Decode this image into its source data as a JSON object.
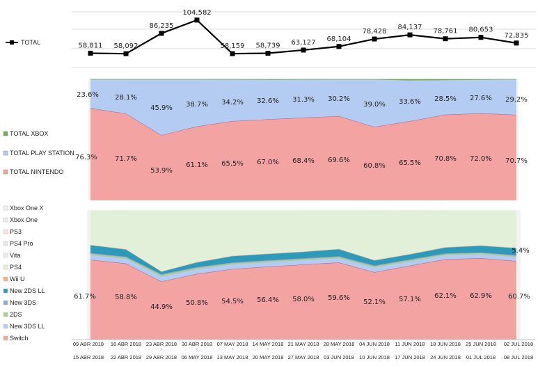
{
  "chart_data": [
    {
      "type": "line",
      "series": [
        {
          "name": "TOTAL",
          "values": [
            58811,
            58092,
            86235,
            104582,
            58159,
            58739,
            63127,
            68104,
            78428,
            84137,
            78761,
            80653,
            72835
          ]
        }
      ],
      "labels": [
        "58,811",
        "58,092",
        "86,235",
        "104,582",
        "58,159",
        "58,739",
        "63,127",
        "68,104",
        "78,428",
        "84,137",
        "78,761",
        "80,653",
        "72,835"
      ],
      "grid": true
    },
    {
      "type": "area",
      "stacked": true,
      "percent": true,
      "series": [
        {
          "name": "TOTAL NINTENDO",
          "color": "#f4a3a3",
          "values": [
            76.3,
            71.7,
            53.9,
            61.1,
            65.5,
            67.0,
            68.4,
            69.6,
            60.8,
            65.5,
            70.8,
            72.0,
            70.7
          ],
          "labels": [
            "76.3%",
            "71.7%",
            "53.9%",
            "61.1%",
            "65.5%",
            "67.0%",
            "68.4%",
            "69.6%",
            "60.8%",
            "65.5%",
            "70.8%",
            "72.0%",
            "70.7%"
          ]
        },
        {
          "name": "TOTAL PLAY STATION",
          "color": "#b4ccf2",
          "values": [
            23.6,
            28.1,
            45.9,
            38.7,
            34.2,
            32.6,
            31.3,
            30.2,
            39.0,
            33.6,
            28.5,
            27.6,
            29.2
          ],
          "labels": [
            "23.6%",
            "28.1%",
            "45.9%",
            "38.7%",
            "34.2%",
            "32.6%",
            "31.3%",
            "30.2%",
            "39.0%",
            "33.6%",
            "28.5%",
            "27.6%",
            "29.2%"
          ]
        },
        {
          "name": "TOTAL XBOX",
          "color": "#70ad47",
          "values": [
            0.1,
            0.2,
            0.2,
            0.2,
            0.3,
            0.4,
            0.3,
            0.2,
            0.2,
            0.9,
            0.7,
            0.4,
            0.1
          ]
        }
      ]
    },
    {
      "type": "area",
      "stacked": true,
      "percent": true,
      "series": [
        {
          "name": "Switch",
          "color": "#f4a3a3",
          "values": [
            61.7,
            58.8,
            44.9,
            50.8,
            54.5,
            56.4,
            58.0,
            59.6,
            52.1,
            57.1,
            62.1,
            62.9,
            60.7
          ],
          "labels": [
            "61.7%",
            "58.8%",
            "44.9%",
            "50.8%",
            "54.5%",
            "56.4%",
            "58.0%",
            "59.6%",
            "52.1%",
            "57.1%",
            "62.1%",
            "62.9%",
            "60.7%"
          ]
        },
        {
          "name": "New 3DS LL",
          "color": "#b4ccf2",
          "values": [
            3.5,
            3.6,
            3.7,
            3.5,
            3.4,
            3.3,
            3.3,
            3.2,
            3.4,
            3.2,
            3.0,
            3.0,
            3.0
          ]
        },
        {
          "name": "2DS",
          "color": "#a9d18e",
          "values": [
            1.0,
            1.0,
            1.2,
            1.0,
            1.0,
            0.9,
            0.9,
            0.9,
            1.1,
            1.0,
            0.9,
            0.9,
            0.9
          ]
        },
        {
          "name": "New 3DS",
          "color": "#8faadc",
          "values": [
            0.6,
            0.6,
            0.7,
            0.6,
            0.6,
            0.6,
            0.6,
            0.6,
            0.6,
            0.6,
            0.5,
            0.5,
            0.5
          ]
        },
        {
          "name": "New 2DS LL",
          "color": "#2e9ab9",
          "values": [
            6.0,
            5.5,
            1.8,
            3.6,
            4.8,
            4.8,
            4.8,
            5.4,
            3.8,
            3.8,
            4.5,
            5.1,
            5.4
          ],
          "labels": [
            "",
            "",
            "",
            "",
            "",
            "",
            "",
            "",
            "",
            "",
            "",
            "",
            "5.4%"
          ]
        },
        {
          "name": "Wii U",
          "color": "#f4b183",
          "values": [
            0.4,
            0.4,
            0.4,
            0.4,
            0.4,
            0.4,
            0.4,
            0.4,
            0.4,
            0.4,
            0.4,
            0.4,
            0.4
          ]
        },
        {
          "name": "PS4",
          "color": "#e2f0d9",
          "values": [
            26.4,
            29.8,
            47.0,
            39.8,
            35.0,
            33.3,
            31.7,
            30.0,
            38.3,
            33.4,
            28.3,
            26.9,
            28.8
          ]
        },
        {
          "name": "Vita",
          "color": "#ededed",
          "values": [
            0.1,
            0.1,
            0.1,
            0.1,
            0.1,
            0.1,
            0.1,
            0.1,
            0.1,
            0.1,
            0.1,
            0.1,
            0.1
          ]
        },
        {
          "name": "PS4 Pro",
          "color": "#eaeaea",
          "values": [
            0.1,
            0.1,
            0.1,
            0.1,
            0.1,
            0.1,
            0.1,
            0.1,
            0.1,
            0.1,
            0.1,
            0.1,
            0.1
          ]
        },
        {
          "name": "PS3",
          "color": "#fce4d6",
          "values": [
            0.1,
            0.1,
            0.1,
            0.1,
            0.1,
            0.1,
            0.1,
            0.1,
            0.1,
            0.1,
            0.1,
            0.1,
            0.1
          ]
        },
        {
          "name": "Xbox One",
          "color": "#ededed",
          "values": [
            0.05,
            0.05,
            0.05,
            0.05,
            0.1,
            0.1,
            0.05,
            0.05,
            0.05,
            0.2,
            0.1,
            0.05,
            0.05
          ]
        },
        {
          "name": "Xbox One X",
          "color": "#f2f2f2",
          "values": [
            0.05,
            0.05,
            0.05,
            0.05,
            0.0,
            0.0,
            0.05,
            0.05,
            0.05,
            0.1,
            0.0,
            0.05,
            0.05
          ]
        }
      ]
    }
  ],
  "axis": {
    "top_ticks": [
      "09 ABR 2018",
      "23 ABR 2018",
      "07 MAY 2018",
      "21 MAY 2018",
      "04 JUN 2018",
      "18 JUN 2018",
      "02 JUL 2018"
    ],
    "top_ticks_b": [
      "16 ABR 2018",
      "30 ABR 2018",
      "14 MAY 2018",
      "28 MAY 2018",
      "11 JUN 2018",
      "25 JUN 2018"
    ],
    "bottom_ticks": [
      "15 ABR 2018",
      "29 ABR 2018",
      "13 MAY 2018",
      "27 MAY 2018",
      "10 JUN 2018",
      "24 JUN 2018",
      "08 JUL 2018"
    ],
    "bottom_ticks_b": [
      "22 ABR 2018",
      "06 MAY 2018",
      "20 MAY 2018",
      "03 JUN 2018",
      "17 JUN 2018",
      "01 JUL 2018"
    ]
  },
  "legend_mid": [
    {
      "name": "TOTAL XBOX",
      "color": "#70ad47"
    },
    {
      "name": "TOTAL PLAY STATION",
      "color": "#b4ccf2"
    },
    {
      "name": "TOTAL NINTENDO",
      "color": "#f4a3a3"
    }
  ],
  "legend_bottom": [
    {
      "name": "Xbox One X",
      "color": "#f2f2f2"
    },
    {
      "name": "Xbox One",
      "color": "#ededed"
    },
    {
      "name": "PS3",
      "color": "#fce4d6"
    },
    {
      "name": "PS4 Pro",
      "color": "#eaeaea"
    },
    {
      "name": "Vita",
      "color": "#ededed"
    },
    {
      "name": "PS4",
      "color": "#e2f0d9"
    },
    {
      "name": "Wii U",
      "color": "#f4b183"
    },
    {
      "name": "New 2DS LL",
      "color": "#2e9ab9"
    },
    {
      "name": "New 3DS",
      "color": "#8faadc"
    },
    {
      "name": "2DS",
      "color": "#a9d18e"
    },
    {
      "name": "New 3DS LL",
      "color": "#b4ccf2"
    },
    {
      "name": "Switch",
      "color": "#f4a3a3"
    }
  ]
}
